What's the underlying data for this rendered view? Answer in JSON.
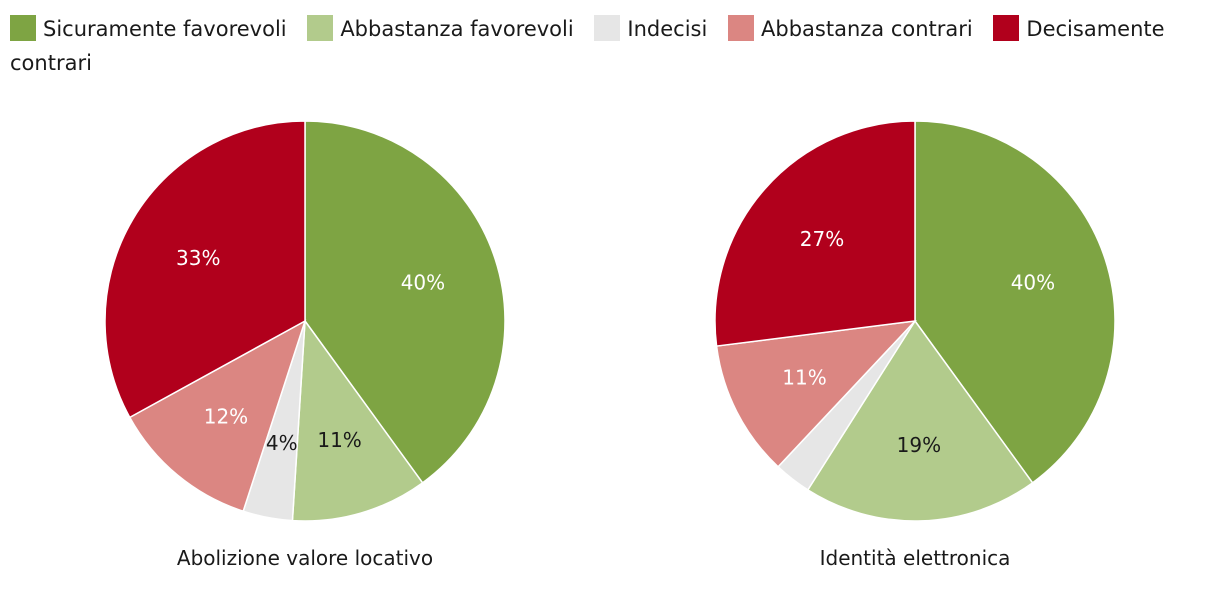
{
  "legend": [
    {
      "label": "Sicuramente favorevoli",
      "color": "#7ea443"
    },
    {
      "label": "Abbastanza favorevoli",
      "color": "#b2cb8c"
    },
    {
      "label": "Indecisi",
      "color": "#e6e6e6"
    },
    {
      "label": "Abbastanza contrari",
      "color": "#db8682"
    },
    {
      "label": "Decisamente contrari",
      "color": "#b1001c"
    }
  ],
  "chart_data": [
    {
      "type": "pie",
      "title": "Abolizione valore locativo",
      "categories": [
        "Sicuramente favorevoli",
        "Abbastanza favorevoli",
        "Indecisi",
        "Abbastanza contrari",
        "Decisamente contrari"
      ],
      "values": [
        40,
        11,
        4,
        12,
        33
      ],
      "labels": [
        "40%",
        "11%",
        "4%",
        "12%",
        "33%"
      ]
    },
    {
      "type": "pie",
      "title": "Identità elettronica",
      "categories": [
        "Sicuramente favorevoli",
        "Abbastanza favorevoli",
        "Indecisi",
        "Abbastanza contrari",
        "Decisamente contrari"
      ],
      "values": [
        40,
        19,
        3,
        11,
        27
      ],
      "labels": [
        "40%",
        "19%",
        "",
        "11%",
        "27%"
      ]
    }
  ]
}
